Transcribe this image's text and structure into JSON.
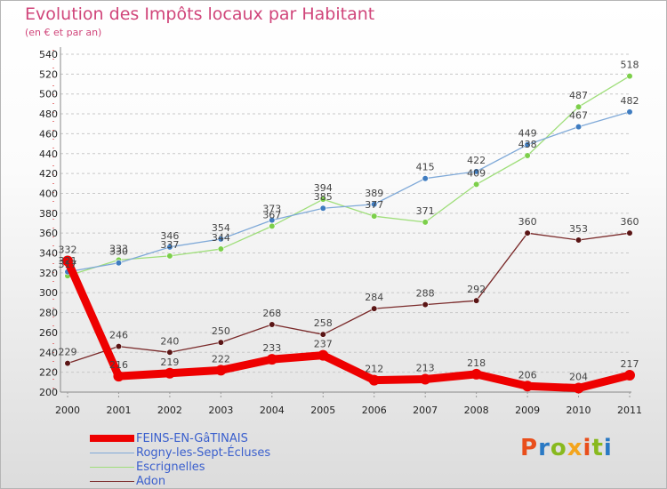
{
  "title": "Evolution des Impôts locaux par Habitant",
  "subtitle": "(en € et par an)",
  "logo_text": "Proxiti",
  "logo_colors": [
    "#e94e1b",
    "#2a79c4",
    "#88b91e",
    "#f4a51c",
    "#e94e1b",
    "#88b91e",
    "#2a79c4"
  ],
  "chart_data": {
    "type": "line",
    "title": "Evolution des Impôts locaux par Habitant",
    "subtitle": "(en € et par an)",
    "x": [
      "2000",
      "2001",
      "2002",
      "2003",
      "2004",
      "2005",
      "2006",
      "2007",
      "2008",
      "2009",
      "2010",
      "2011"
    ],
    "y_ticks": [
      "200",
      "220",
      "240",
      "260",
      "280",
      "300",
      "320",
      "340",
      "360",
      "380",
      "400",
      "420",
      "440",
      "460",
      "480",
      "500",
      "520",
      "540"
    ],
    "ylim": [
      200,
      540
    ],
    "grid": "horizontal dashed",
    "legend_position": "bottom-left",
    "series": [
      {
        "name": "Adon",
        "color": "#7a2a2a",
        "marker": "#5a1515",
        "width": 1.3,
        "values": [
          229,
          246,
          240,
          250,
          268,
          258,
          284,
          288,
          292,
          360,
          353,
          360
        ],
        "labels": [
          "229",
          "246",
          "240",
          "250",
          "268",
          "258",
          "284",
          "288",
          "292",
          "360",
          "353",
          "360"
        ]
      },
      {
        "name": "Escrignelles",
        "color": "#9fde7a",
        "marker": "#7ccf4a",
        "width": 1.3,
        "values": [
          317,
          333,
          337,
          344,
          367,
          394,
          377,
          371,
          409,
          438,
          487,
          518
        ],
        "labels": [
          "317",
          "333",
          "337",
          "344",
          "367",
          "394",
          "377",
          "371",
          "409",
          "438",
          "487",
          "518"
        ]
      },
      {
        "name": "Rogny-les-Sept-Écluses",
        "color": "#7fa9d8",
        "marker": "#3f7cc0",
        "width": 1.3,
        "values": [
          321,
          330,
          346,
          354,
          373,
          385,
          389,
          415,
          422,
          449,
          467,
          482
        ],
        "labels": [
          "321",
          "330",
          "346",
          "354",
          "373",
          "385",
          "389",
          "415",
          "422",
          "449",
          "467",
          "482"
        ]
      },
      {
        "name": "FEINS-EN-GâTINAIS",
        "color": "#ee0000",
        "marker": "#ee0000",
        "width": 9,
        "values": [
          332,
          216,
          219,
          222,
          233,
          237,
          212,
          213,
          218,
          206,
          204,
          217
        ],
        "labels": [
          "332",
          "216",
          "219",
          "222",
          "233",
          "237",
          "212",
          "213",
          "218",
          "206",
          "204",
          "217"
        ]
      }
    ],
    "legend": [
      "FEINS-EN-GâTINAIS",
      "Rogny-les-Sept-Écluses",
      "Escrignelles",
      "Adon"
    ]
  }
}
